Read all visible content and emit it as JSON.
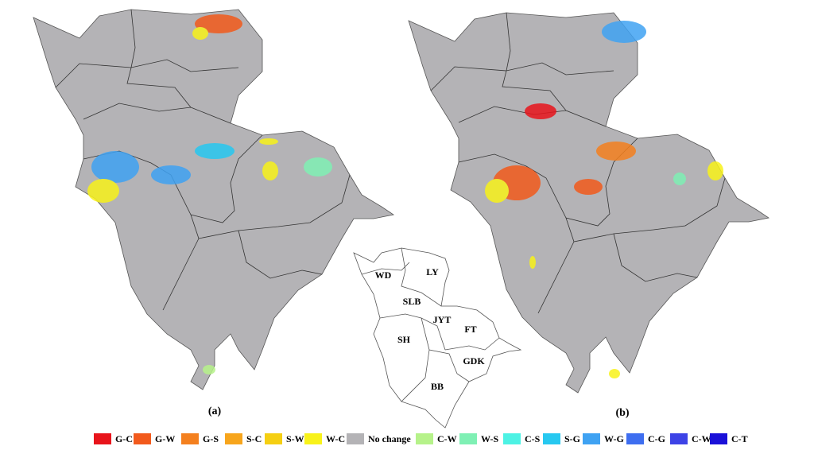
{
  "panels": [
    "(a)",
    "(b)"
  ],
  "inset": {
    "regions": [
      "WD",
      "LY",
      "SLB",
      "JYT",
      "FT",
      "SH",
      "GDK",
      "BB"
    ]
  },
  "legend": [
    {
      "label": "G-C",
      "color": "#e8141b"
    },
    {
      "label": "G-W",
      "color": "#f25a1c"
    },
    {
      "label": "G-S",
      "color": "#f4801f"
    },
    {
      "label": "S-C",
      "color": "#f7a51c"
    },
    {
      "label": "S-W",
      "color": "#f5cf12"
    },
    {
      "label": "W-C",
      "color": "#f8f21a"
    },
    {
      "label": "No change",
      "color": "#b4b3b6"
    },
    {
      "label": "C-W",
      "color": "#b6f28a"
    },
    {
      "label": "W-S",
      "color": "#7ff0b4"
    },
    {
      "label": "C-S",
      "color": "#4df2e4"
    },
    {
      "label": "S-G",
      "color": "#27c8f0"
    },
    {
      "label": "W-G",
      "color": "#3fa2f2"
    },
    {
      "label": "C-G",
      "color": "#3e6ef0"
    },
    {
      "label": "C-Wa",
      "color": "#3d43e6"
    },
    {
      "label": "C-T",
      "color": "#1a10d8"
    }
  ]
}
